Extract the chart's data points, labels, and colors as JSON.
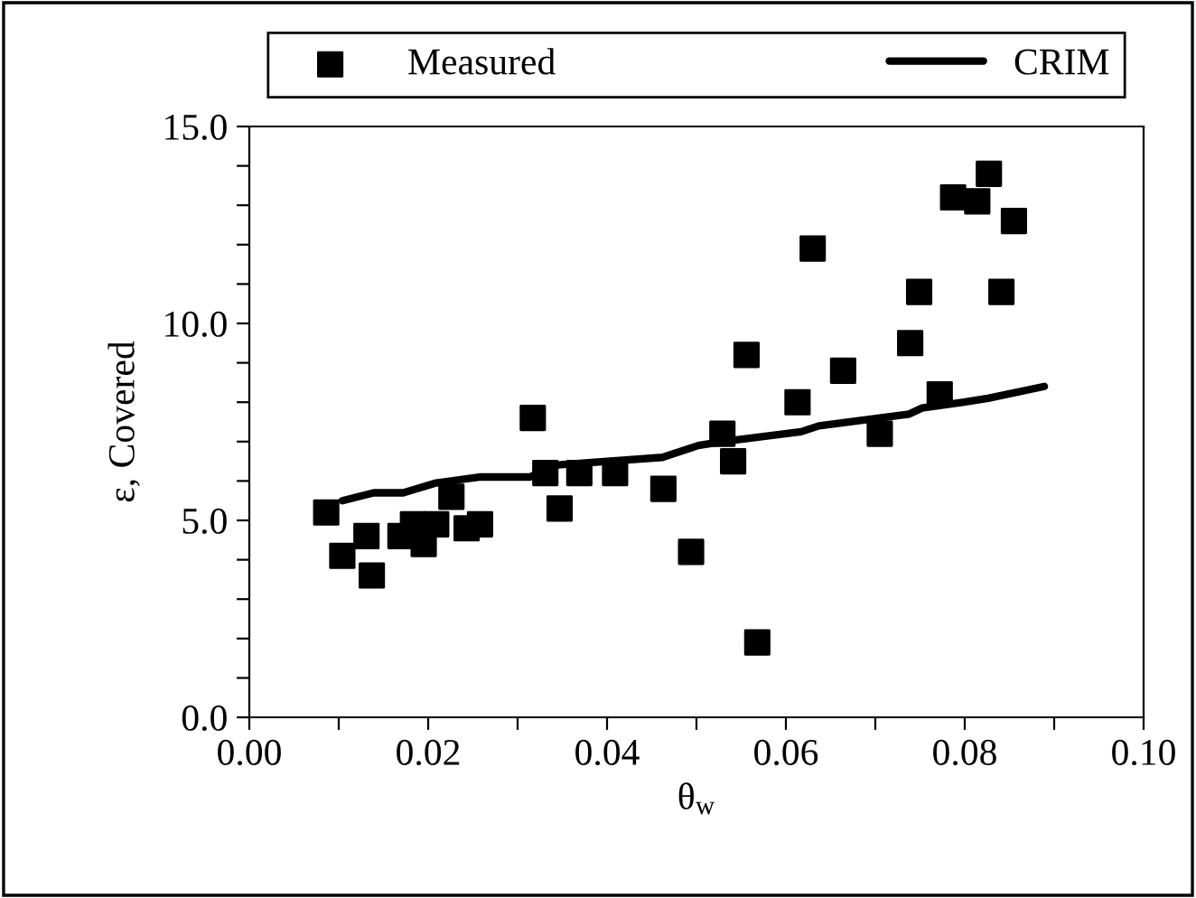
{
  "chart_data": {
    "type": "scatter",
    "xlabel": "θ$_{w}$",
    "ylabel": "ε, Covered",
    "legend": "top",
    "grid": false,
    "xlim": [
      0,
      0.1
    ],
    "xticks": [
      {
        "value": 0,
        "label": "0.00"
      },
      {
        "value": 0.01,
        "label": null
      },
      {
        "value": 0.02,
        "label": "0.02"
      },
      {
        "value": 0.03,
        "label": null
      },
      {
        "value": 0.04,
        "label": "0.04"
      },
      {
        "value": 0.05,
        "label": null
      },
      {
        "value": 0.06,
        "label": "0.06"
      },
      {
        "value": 0.07,
        "label": null
      },
      {
        "value": 0.08,
        "label": "0.08"
      },
      {
        "value": 0.09,
        "label": null
      },
      {
        "value": 0.1,
        "label": "0.10"
      }
    ],
    "ylim": [
      0,
      15
    ],
    "yticks": [
      {
        "value": 0,
        "label": "0.0"
      },
      {
        "value": 1,
        "label": null
      },
      {
        "value": 2,
        "label": null
      },
      {
        "value": 3,
        "label": null
      },
      {
        "value": 4,
        "label": null
      },
      {
        "value": 5,
        "label": "5.0"
      },
      {
        "value": 6,
        "label": null
      },
      {
        "value": 7,
        "label": null
      },
      {
        "value": 8,
        "label": null
      },
      {
        "value": 9,
        "label": null
      },
      {
        "value": 10,
        "label": "10.0"
      },
      {
        "value": 11,
        "label": null
      },
      {
        "value": 12,
        "label": null
      },
      {
        "value": 13,
        "label": null
      },
      {
        "value": 14,
        "label": null
      },
      {
        "value": 15,
        "label": "15.0"
      }
    ],
    "series": [
      {
        "name": "Measured",
        "marker": "square",
        "color": "#000000",
        "x": [
          0.0086,
          0.0104,
          0.0131,
          0.0137,
          0.0169,
          0.0183,
          0.0195,
          0.0209,
          0.0226,
          0.0243,
          0.0258,
          0.0317,
          0.0331,
          0.0347,
          0.0369,
          0.0409,
          0.0463,
          0.0494,
          0.0529,
          0.0541,
          0.0556,
          0.0568,
          0.0613,
          0.063,
          0.0664,
          0.0705,
          0.0739,
          0.0749,
          0.0772,
          0.0787,
          0.0814,
          0.0827,
          0.0841,
          0.0855
        ],
        "values": [
          5.2,
          4.1,
          4.6,
          3.6,
          4.6,
          4.9,
          4.4,
          4.9,
          5.6,
          4.8,
          4.9,
          7.6,
          6.2,
          5.3,
          6.2,
          6.2,
          5.8,
          4.2,
          7.2,
          6.5,
          9.2,
          1.9,
          8.0,
          11.9,
          8.8,
          7.2,
          9.5,
          10.8,
          8.2,
          13.2,
          13.1,
          13.8,
          10.8,
          12.6
        ]
      },
      {
        "name": "CRIM",
        "type": "line",
        "marker": "none",
        "line_style": "solid",
        "color": "#000000",
        "x": [
          0.0104,
          0.0139,
          0.0172,
          0.0209,
          0.0257,
          0.0314,
          0.0341,
          0.0462,
          0.0502,
          0.0529,
          0.0617,
          0.0637,
          0.0738,
          0.0752,
          0.0799,
          0.0826,
          0.0889
        ],
        "values": [
          5.5,
          5.7,
          5.7,
          5.95,
          6.1,
          6.1,
          6.4,
          6.6,
          6.9,
          7.0,
          7.25,
          7.4,
          7.7,
          7.85,
          8.0,
          8.1,
          8.4
        ]
      }
    ]
  }
}
